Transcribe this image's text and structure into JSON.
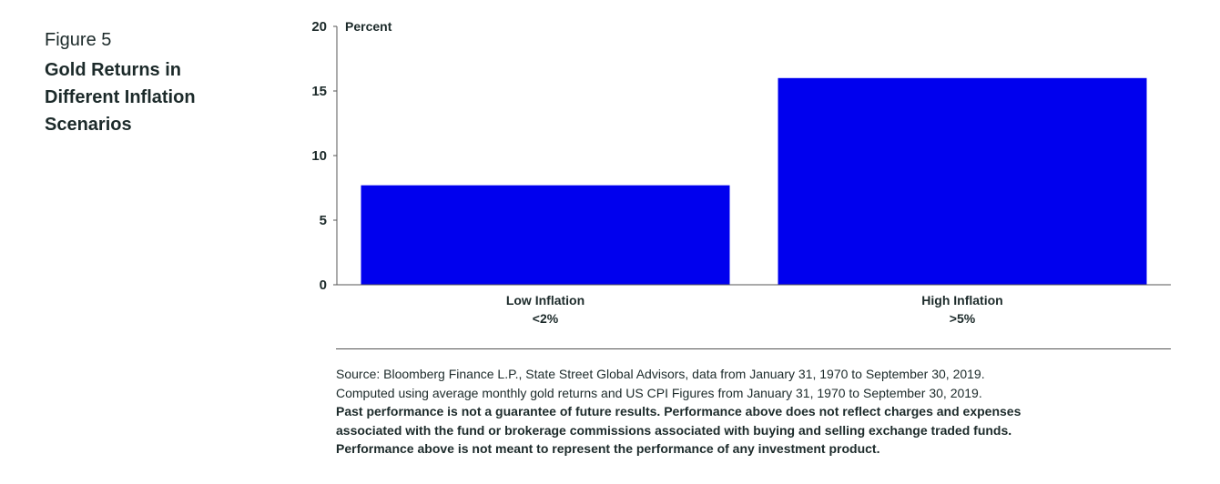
{
  "figure": {
    "label": "Figure 5",
    "title": "Gold Returns in Different Inflation Scenarios"
  },
  "colors": {
    "bar": "#0000ee",
    "text": "#1c2a2a",
    "axis": "#555555"
  },
  "chart_data": {
    "type": "bar",
    "categories": [
      [
        "Low Inflation",
        "<2%"
      ],
      [
        "High Inflation",
        ">5%"
      ]
    ],
    "values": [
      7.7,
      16.0
    ],
    "ylabel": "Percent",
    "ylim": [
      0,
      20
    ],
    "yticks": [
      0,
      5,
      10,
      15,
      20
    ],
    "grid": false,
    "legend": "none"
  },
  "notes": {
    "source": "Source: Bloomberg Finance L.P., State Street Global Advisors, data from January 31, 1970 to September 30, 2019.",
    "computed": "Computed using average monthly gold returns and US CPI Figures from January 31, 1970 to September 30, 2019.",
    "disclaimer_1": "Past performance is not a guarantee of future results. Performance above does not reflect charges and expenses",
    "disclaimer_2": "associated with the fund or brokerage commissions associated with buying and selling exchange traded funds.",
    "disclaimer_3": "Performance above is not meant to represent the performance of any investment product."
  }
}
